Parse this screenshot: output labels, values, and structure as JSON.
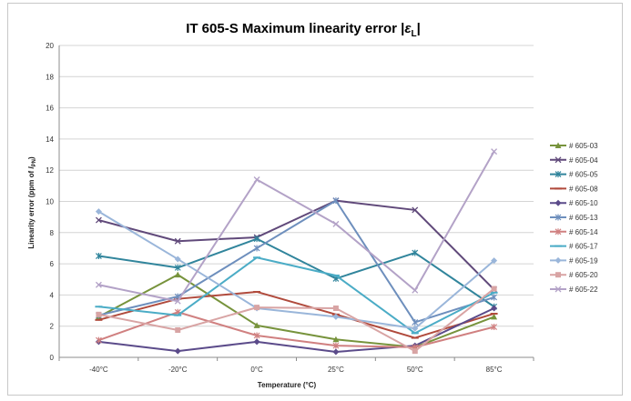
{
  "chart_data": {
    "type": "line",
    "title": "IT 605-S Maximum linearity error |εL|",
    "title_main": "IT 605-S Maximum linearity error |",
    "title_symbol": "ε",
    "title_sub": "L",
    "title_end": "|",
    "xlabel": "Temperature (°C)",
    "ylabel": "Linearity error (ppm of IPN)",
    "ylabel_main": "Linearity error (ppm of ",
    "ylabel_symbol": "I",
    "ylabel_sub": "PN",
    "ylabel_end": ")",
    "categories": [
      "-40°C",
      "-20°C",
      "0°C",
      "25°C",
      "50°C",
      "85°C"
    ],
    "ylim": [
      0,
      20
    ],
    "yticks": [
      "0",
      "2",
      "4",
      "6",
      "8",
      "10",
      "12",
      "14",
      "16",
      "18",
      "20"
    ],
    "grid": true,
    "legend_position": "right",
    "series": [
      {
        "name": "# 605-03",
        "color": "#77933c",
        "marker": "triangle",
        "values": [
          2.6,
          5.3,
          2.05,
          1.15,
          0.65,
          2.6
        ]
      },
      {
        "name": "# 605-04",
        "color": "#60497a",
        "marker": "x",
        "values": [
          8.8,
          7.45,
          7.7,
          10.05,
          9.45,
          4.35
        ]
      },
      {
        "name": "# 605-05",
        "color": "#31859c",
        "marker": "star",
        "values": [
          6.5,
          5.75,
          7.6,
          5.05,
          6.7,
          3.25
        ]
      },
      {
        "name": "# 605-08",
        "color": "#b04a3c",
        "marker": "line",
        "values": [
          2.4,
          3.75,
          4.2,
          2.75,
          1.25,
          2.8
        ]
      },
      {
        "name": "# 605-10",
        "color": "#5b4b8a",
        "marker": "diamond",
        "values": [
          1.0,
          0.4,
          1.0,
          0.35,
          0.75,
          3.15
        ]
      },
      {
        "name": "# 605-13",
        "color": "#6e8fbd",
        "marker": "star",
        "values": [
          2.7,
          3.9,
          7.0,
          10.05,
          2.25,
          3.85
        ]
      },
      {
        "name": "# 605-14",
        "color": "#d08080",
        "marker": "star",
        "values": [
          1.1,
          2.9,
          1.4,
          0.75,
          0.65,
          1.95
        ]
      },
      {
        "name": "# 605-17",
        "color": "#4bacc6",
        "marker": "line",
        "values": [
          3.25,
          2.7,
          6.4,
          5.25,
          1.55,
          4.15
        ]
      },
      {
        "name": "# 605-19",
        "color": "#9ab6da",
        "marker": "diamond",
        "values": [
          9.35,
          6.3,
          3.15,
          2.6,
          1.85,
          6.2
        ]
      },
      {
        "name": "# 605-20",
        "color": "#d8a4a4",
        "marker": "square",
        "values": [
          2.75,
          1.75,
          3.2,
          3.15,
          0.4,
          4.4
        ]
      },
      {
        "name": "# 605-22",
        "color": "#b3a2c7",
        "marker": "x",
        "values": [
          4.65,
          3.6,
          11.4,
          8.55,
          4.3,
          13.2
        ]
      }
    ]
  }
}
